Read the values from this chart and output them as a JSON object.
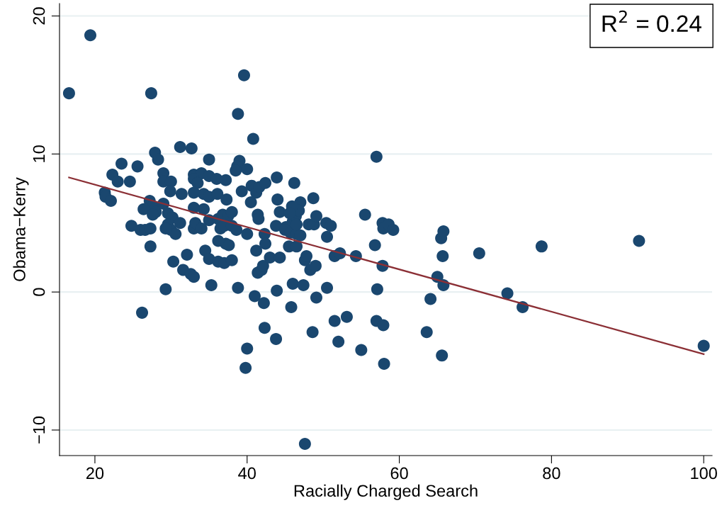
{
  "chart_data": {
    "type": "scatter",
    "xlabel": "Racially Charged Search",
    "ylabel": "Obama−Kerry",
    "annotations": [
      "R$^{2}$ = 0.24"
    ],
    "xlim": [
      15.35,
      101.1
    ],
    "ylim": [
      -11.85,
      20.9
    ],
    "xticks": [
      20,
      40,
      60,
      80,
      100
    ],
    "yticks": [
      -10,
      0,
      10,
      20
    ],
    "grid": "y",
    "marker": "circle",
    "series": [
      {
        "color": "#1a476f",
        "x": [
          16.6,
          19.4,
          27.4,
          39.6,
          38.8,
          40.8,
          31.2,
          32.7,
          27.9,
          28.3,
          35,
          39,
          38.7,
          57,
          23.5,
          25.6,
          22.3,
          23,
          24.6,
          29,
          33,
          34,
          35,
          36,
          37.2,
          38.5,
          40,
          29,
          30,
          33,
          33.5,
          21.3,
          21.4,
          22.1,
          29.9,
          31.4,
          33,
          34.3,
          35,
          36.1,
          37.3,
          39.3,
          40.6,
          41.2,
          41.6,
          42.4,
          43.9,
          46.2,
          44,
          40.5,
          27.2,
          27.6,
          28,
          29,
          26.4,
          27.6,
          29.6,
          30.2,
          31.2,
          33,
          34.3,
          35,
          36.2,
          36.8,
          37.5,
          38,
          36.5,
          37,
          38,
          38.6,
          40,
          41.4,
          41.5,
          42.3,
          43.8,
          44.3,
          45.1,
          46,
          46.4,
          47,
          46.8,
          48.7,
          48.1,
          48.8,
          49.1,
          50.4,
          51,
          50.5,
          45,
          45.7,
          46.5,
          47,
          24.8,
          26,
          26.6,
          27.3,
          29.6,
          30,
          30.6,
          33,
          33.2,
          34,
          27.3,
          29.3,
          32.1,
          30.3,
          31.6,
          32.6,
          33,
          34.5,
          35,
          35.3,
          36.2,
          37,
          37.2,
          37.6,
          38,
          36.2,
          38.8,
          41.2,
          41.4,
          41.9,
          42.1,
          42.4,
          43,
          44.3,
          45.5,
          46,
          46.5,
          47.6,
          47.8,
          48.3,
          49,
          47.4,
          50.5,
          51.5,
          52.2,
          54.3,
          55.5,
          56.8,
          57.1,
          57.8,
          57.9,
          58.6,
          59.2,
          57.8,
          26.2,
          29.3,
          41,
          42.2,
          45.8,
          49.1,
          43.9,
          42.3,
          40,
          39.8,
          43.8,
          48.6,
          51.5,
          53.1,
          52,
          55,
          57,
          57.9,
          58,
          63.6,
          64.1,
          65,
          65.5,
          65.8,
          65.7,
          65.8,
          65.6,
          70.5,
          74.2,
          76.2,
          78.7,
          91.5,
          100,
          47.6,
          45.9,
          45.6,
          46.5
        ],
        "values": [
          14.4,
          18.6,
          14.4,
          15.7,
          12.9,
          11.1,
          10.5,
          10.4,
          10.1,
          9.6,
          9.6,
          9.5,
          9.1,
          9.8,
          9.3,
          9.1,
          8.5,
          8,
          8,
          8.6,
          8.5,
          8.6,
          8.4,
          8.2,
          8.1,
          8.8,
          8.9,
          8,
          8,
          8.2,
          7.9,
          7.2,
          6.9,
          6.6,
          7.3,
          7.1,
          7.2,
          7.1,
          6.9,
          7.1,
          6.7,
          7.3,
          7.7,
          7.2,
          7.6,
          7.9,
          8.3,
          7.9,
          6.7,
          6.5,
          6.6,
          6.2,
          5.8,
          6.4,
          6,
          5.6,
          5.7,
          5.4,
          5.0,
          6.1,
          6,
          5.2,
          5.3,
          5.6,
          5.5,
          5.8,
          4.6,
          4.8,
          4.8,
          4.5,
          4.2,
          5.6,
          5.3,
          4.2,
          4.8,
          5.8,
          4.7,
          5.1,
          5.5,
          6.5,
          5.9,
          6.8,
          4.9,
          4.9,
          5.5,
          5.0,
          4.8,
          4.0,
          4.5,
          4.3,
          4.2,
          4.1,
          4.8,
          4.5,
          4.5,
          4.6,
          4.9,
          4.5,
          4.2,
          4.6,
          5,
          4.6,
          3.3,
          4.6,
          2.7,
          2.2,
          1.6,
          1.3,
          1.1,
          3,
          2.4,
          0.5,
          2.2,
          2.1,
          3.5,
          3.4,
          2.3,
          3.7,
          0.3,
          3.0,
          1.4,
          1.6,
          1.9,
          3.5,
          2.5,
          2.5,
          3.3,
          0.6,
          3.3,
          2.3,
          2.6,
          1.6,
          1.9,
          0.5,
          0.3,
          2.6,
          2.8,
          2.6,
          5.6,
          3.4,
          0.2,
          5.0,
          4.6,
          4.9,
          4.5,
          1.9,
          -1.5,
          0.2,
          -0.3,
          -0.8,
          -1.1,
          -0.4,
          0.1,
          -2.6,
          -4.1,
          -5.5,
          -3.4,
          -2.9,
          -2.1,
          -1.8,
          -3.6,
          -4.2,
          -2.1,
          -2.4,
          -5.2,
          -2.9,
          -0.5,
          1.1,
          3.9,
          4.4,
          2.6,
          0.5,
          -4.6,
          2.8,
          -0.1,
          -1.1,
          3.3,
          3.7,
          -3.9,
          -11.0,
          6.2,
          5.7,
          4.9
        ]
      },
      {
        "type": "line",
        "color": "#8b2f35",
        "x": [
          16.6,
          100
        ],
        "values": [
          8.3,
          -4.5
        ],
        "marker": "none"
      }
    ]
  }
}
